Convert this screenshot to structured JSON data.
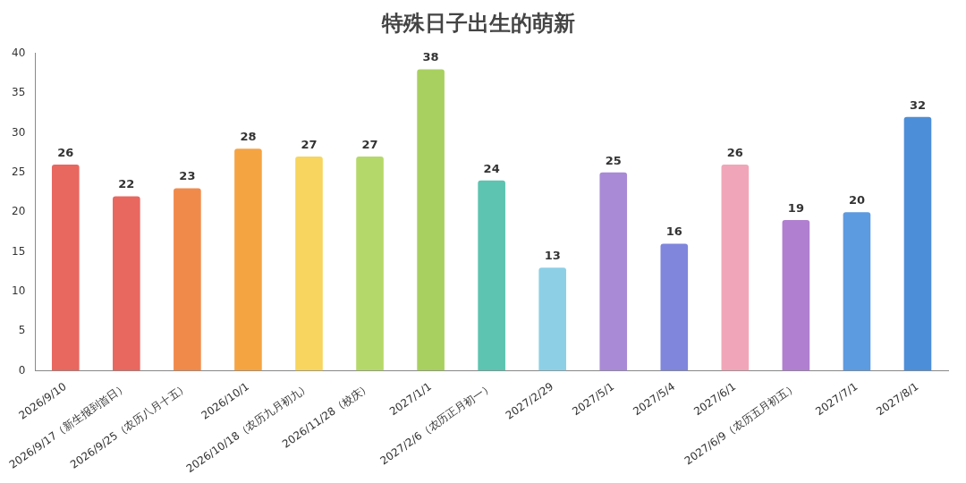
{
  "chart_data": {
    "type": "bar",
    "title": "特殊日子出生的萌新",
    "categories": [
      "2026/9/10",
      "2026/9/17（新生报到首日）",
      "2026/9/25（农历八月十五）",
      "2026/10/1",
      "2026/10/18（农历九月初九）",
      "2026/11/28（校庆）",
      "2027/1/1",
      "2027/2/6（农历正月初一）",
      "2027/2/29",
      "2027/5/1",
      "2027/5/4",
      "2027/6/1",
      "2027/6/9（农历五月初五）",
      "2027/7/1",
      "2027/8/1"
    ],
    "values": [
      26,
      22,
      23,
      28,
      27,
      27,
      38,
      24,
      13,
      25,
      16,
      26,
      19,
      20,
      32
    ],
    "colors": [
      "#e8675f",
      "#e8675f",
      "#f08a4b",
      "#f5a442",
      "#f7d55e",
      "#b5d86a",
      "#a8d060",
      "#5cc4b0",
      "#8dd0e6",
      "#a98ad6",
      "#7f86dc",
      "#f0a6b8",
      "#b07fd0",
      "#5d9be0",
      "#4d8ed8"
    ],
    "ylim": [
      0,
      40
    ],
    "yticks": [
      0,
      5,
      10,
      15,
      20,
      25,
      30,
      35,
      40
    ],
    "grid": false,
    "data_labels": true
  }
}
